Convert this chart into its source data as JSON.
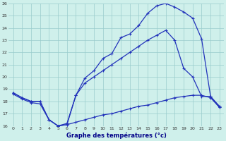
{
  "xlabel": "Graphe des températures (°c)",
  "bg_color": "#cff0eb",
  "line_color": "#2233bb",
  "grid_color": "#99cccc",
  "xlim": [
    -0.5,
    23.5
  ],
  "ylim": [
    16,
    26
  ],
  "xticks": [
    0,
    1,
    2,
    3,
    4,
    5,
    6,
    7,
    8,
    9,
    10,
    11,
    12,
    13,
    14,
    15,
    16,
    17,
    18,
    19,
    20,
    21,
    22,
    23
  ],
  "yticks": [
    16,
    17,
    18,
    19,
    20,
    21,
    22,
    23,
    24,
    25,
    26
  ],
  "line1_x": [
    0,
    1,
    2,
    3,
    4,
    5,
    6,
    7,
    8,
    9,
    10,
    11,
    12,
    13,
    14,
    15,
    16,
    17,
    18,
    19,
    20,
    21,
    22,
    23
  ],
  "line1_y": [
    18.7,
    18.3,
    18.0,
    18.0,
    16.5,
    16.0,
    16.1,
    18.5,
    19.9,
    20.5,
    21.5,
    21.9,
    23.2,
    23.5,
    24.2,
    25.2,
    25.8,
    26.0,
    25.7,
    25.3,
    24.8,
    23.1,
    18.4,
    17.6
  ],
  "line2_x": [
    0,
    1,
    2,
    3,
    4,
    5,
    6,
    7,
    8,
    9,
    10,
    11,
    12,
    13,
    14,
    15,
    16,
    17,
    18,
    19,
    20,
    21,
    22,
    23
  ],
  "line2_y": [
    18.7,
    18.3,
    18.0,
    18.0,
    16.5,
    16.0,
    16.2,
    18.5,
    19.5,
    20.0,
    20.5,
    21.0,
    21.5,
    22.0,
    22.5,
    23.0,
    23.4,
    23.8,
    23.0,
    20.7,
    20.0,
    18.4,
    18.4,
    17.5
  ],
  "line3_x": [
    0,
    1,
    2,
    3,
    4,
    5,
    6,
    7,
    8,
    9,
    10,
    11,
    12,
    13,
    14,
    15,
    16,
    17,
    18,
    19,
    20,
    21,
    22,
    23
  ],
  "line3_y": [
    18.6,
    18.2,
    17.9,
    17.8,
    16.5,
    16.0,
    16.1,
    16.3,
    16.5,
    16.7,
    16.9,
    17.0,
    17.2,
    17.4,
    17.6,
    17.7,
    17.9,
    18.1,
    18.3,
    18.4,
    18.5,
    18.5,
    18.3,
    17.5
  ]
}
